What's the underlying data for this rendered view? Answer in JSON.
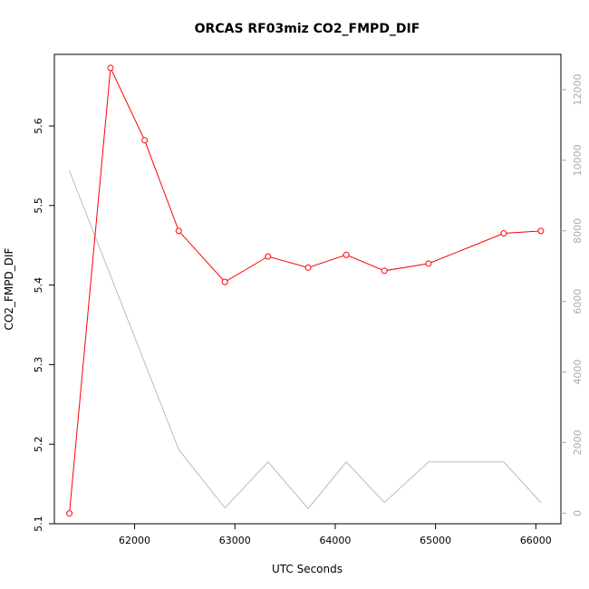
{
  "chart_data": {
    "type": "line",
    "title": "ORCAS RF03miz CO2_FMPD_DIF",
    "xlabel": "UTC Seconds",
    "ylabel": "CO2_FMPD_DIF",
    "xlim": [
      61200,
      66250
    ],
    "ylim": [
      5.1,
      5.69
    ],
    "y2lim": [
      -300,
      13000
    ],
    "x_ticks": [
      62000,
      63000,
      64000,
      65000,
      66000
    ],
    "y_ticks": [
      5.1,
      5.2,
      5.3,
      5.4,
      5.5,
      5.6
    ],
    "y2_ticks": [
      0,
      2000,
      4000,
      6000,
      8000,
      10000,
      12000
    ],
    "grid": false,
    "series": [
      {
        "axis": "left",
        "color": "#ff0000",
        "marker": "circle",
        "x": [
          61350,
          61760,
          62100,
          62440,
          62900,
          63330,
          63730,
          64110,
          64490,
          64930,
          65680,
          66050
        ],
        "y": [
          5.113,
          5.673,
          5.582,
          5.468,
          5.404,
          5.436,
          5.422,
          5.438,
          5.418,
          5.427,
          5.465,
          5.468
        ]
      },
      {
        "axis": "right",
        "color": "#bbbbbb",
        "marker": "none",
        "x": [
          61350,
          62440,
          62900,
          63330,
          63730,
          64110,
          64490,
          64930,
          65680,
          66050
        ],
        "y": [
          9700,
          1800,
          150,
          1450,
          130,
          1450,
          300,
          1450,
          1450,
          300
        ]
      }
    ]
  }
}
